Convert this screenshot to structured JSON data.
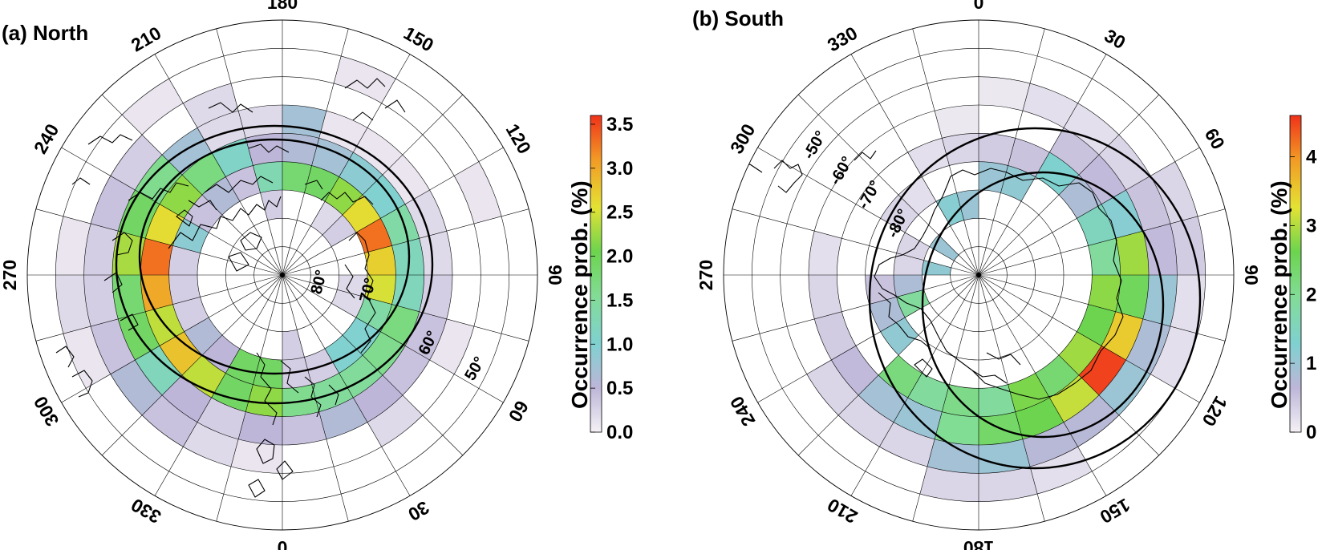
{
  "chart_data": [
    {
      "type": "heatmap",
      "projection": "polar",
      "title": "(a) North",
      "colorbar": {
        "label": "Occurrence prob. (%)",
        "ticks": [
          "0.0",
          "0.5",
          "1.0",
          "1.5",
          "2.0",
          "2.5",
          "3.0",
          "3.5"
        ],
        "range": [
          0,
          3.6
        ]
      },
      "lon_labels": [
        "180",
        "150",
        "120",
        "90",
        "60",
        "30",
        "0",
        "330",
        "300",
        "270",
        "240",
        "210"
      ],
      "lat_labels": [
        "80°",
        "70°",
        "60°",
        "50°"
      ],
      "lat_range": [
        45,
        90
      ],
      "lon_bin_deg": 15,
      "lat_bands": [
        50,
        55,
        60,
        65,
        70,
        75,
        80
      ],
      "grid": true,
      "ovals": [
        {
          "center_lat_offset": 1.5,
          "radius_deg": 23
        },
        {
          "center_lat_offset": 1.5,
          "radius_deg": 30
        }
      ],
      "cells": [
        {
          "lon": 0,
          "lat": 70,
          "v": 0.3
        },
        {
          "lon": 15,
          "lat": 70,
          "v": 0.3
        },
        {
          "lon": 30,
          "lat": 70,
          "v": 1.0
        },
        {
          "lon": 45,
          "lat": 70,
          "v": 1.0
        },
        {
          "lon": 60,
          "lat": 70,
          "v": 1.4
        },
        {
          "lon": 75,
          "lat": 70,
          "v": 2.5
        },
        {
          "lon": 90,
          "lat": 70,
          "v": 2.7
        },
        {
          "lon": 105,
          "lat": 70,
          "v": 3.3
        },
        {
          "lon": 120,
          "lat": 70,
          "v": 2.6
        },
        {
          "lon": 135,
          "lat": 70,
          "v": 2.2
        },
        {
          "lon": 150,
          "lat": 70,
          "v": 1.9
        },
        {
          "lon": 165,
          "lat": 70,
          "v": 1.8
        },
        {
          "lon": 180,
          "lat": 70,
          "v": 1.3
        },
        {
          "lon": 195,
          "lat": 70,
          "v": 0.4
        },
        {
          "lon": 210,
          "lat": 70,
          "v": 0.6
        },
        {
          "lon": 225,
          "lat": 70,
          "v": 0.4
        },
        {
          "lon": 240,
          "lat": 70,
          "v": 0.9
        },
        {
          "lon": 255,
          "lat": 70,
          "v": 0.3
        },
        {
          "lon": 270,
          "lat": 70,
          "v": 0.3
        },
        {
          "lon": 285,
          "lat": 70,
          "v": 0.3
        },
        {
          "lon": 300,
          "lat": 70,
          "v": 0.6
        },
        {
          "lon": 315,
          "lat": 70,
          "v": 0.5
        },
        {
          "lon": 330,
          "lat": 70,
          "v": 1.9
        },
        {
          "lon": 345,
          "lat": 70,
          "v": 1.9
        },
        {
          "lon": 0,
          "lat": 65,
          "v": 1.6
        },
        {
          "lon": 15,
          "lat": 65,
          "v": 1.5
        },
        {
          "lon": 30,
          "lat": 65,
          "v": 1.5
        },
        {
          "lon": 45,
          "lat": 65,
          "v": 1.6
        },
        {
          "lon": 60,
          "lat": 65,
          "v": 1.7
        },
        {
          "lon": 75,
          "lat": 65,
          "v": 1.2
        },
        {
          "lon": 90,
          "lat": 65,
          "v": 1.2
        },
        {
          "lon": 105,
          "lat": 65,
          "v": 1.4
        },
        {
          "lon": 120,
          "lat": 65,
          "v": 1.0
        },
        {
          "lon": 135,
          "lat": 65,
          "v": 0.9
        },
        {
          "lon": 150,
          "lat": 65,
          "v": 0.7
        },
        {
          "lon": 165,
          "lat": 65,
          "v": 0.6
        },
        {
          "lon": 180,
          "lat": 65,
          "v": 0.5
        },
        {
          "lon": 195,
          "lat": 65,
          "v": 1.1
        },
        {
          "lon": 210,
          "lat": 65,
          "v": 1.7
        },
        {
          "lon": 225,
          "lat": 65,
          "v": 2.2
        },
        {
          "lon": 240,
          "lat": 65,
          "v": 2.6
        },
        {
          "lon": 255,
          "lat": 65,
          "v": 3.3
        },
        {
          "lon": 270,
          "lat": 65,
          "v": 3.0
        },
        {
          "lon": 285,
          "lat": 65,
          "v": 2.4
        },
        {
          "lon": 300,
          "lat": 65,
          "v": 2.8
        },
        {
          "lon": 315,
          "lat": 65,
          "v": 2.4
        },
        {
          "lon": 330,
          "lat": 65,
          "v": 1.9
        },
        {
          "lon": 345,
          "lat": 65,
          "v": 2.2
        },
        {
          "lon": 0,
          "lat": 60,
          "v": 0.4
        },
        {
          "lon": 15,
          "lat": 60,
          "v": 0.6
        },
        {
          "lon": 30,
          "lat": 60,
          "v": 0.5
        },
        {
          "lon": 45,
          "lat": 60,
          "v": 0.4
        },
        {
          "lon": 60,
          "lat": 60,
          "v": 0.4
        },
        {
          "lon": 75,
          "lat": 60,
          "v": 0.3
        },
        {
          "lon": 90,
          "lat": 60,
          "v": 0.2
        },
        {
          "lon": 105,
          "lat": 60,
          "v": 0.2
        },
        {
          "lon": 120,
          "lat": 60,
          "v": 0.1
        },
        {
          "lon": 135,
          "lat": 60,
          "v": 0.1
        },
        {
          "lon": 150,
          "lat": 60,
          "v": 0.1
        },
        {
          "lon": 165,
          "lat": 60,
          "v": 0.7
        },
        {
          "lon": 180,
          "lat": 60,
          "v": 0.2
        },
        {
          "lon": 195,
          "lat": 60,
          "v": 0.2
        },
        {
          "lon": 210,
          "lat": 60,
          "v": 0.7
        },
        {
          "lon": 225,
          "lat": 60,
          "v": 1.6
        },
        {
          "lon": 240,
          "lat": 60,
          "v": 1.9
        },
        {
          "lon": 255,
          "lat": 60,
          "v": 2.3
        },
        {
          "lon": 270,
          "lat": 60,
          "v": 1.8
        },
        {
          "lon": 285,
          "lat": 60,
          "v": 1.9
        },
        {
          "lon": 300,
          "lat": 60,
          "v": 1.2
        },
        {
          "lon": 315,
          "lat": 60,
          "v": 0.5
        },
        {
          "lon": 330,
          "lat": 60,
          "v": 0.3
        },
        {
          "lon": 345,
          "lat": 60,
          "v": 0.5
        },
        {
          "lon": 195,
          "lat": 55,
          "v": 0.2
        },
        {
          "lon": 225,
          "lat": 55,
          "v": 0.3
        },
        {
          "lon": 240,
          "lat": 55,
          "v": 0.4
        },
        {
          "lon": 255,
          "lat": 55,
          "v": 0.3
        },
        {
          "lon": 270,
          "lat": 55,
          "v": 0.3
        },
        {
          "lon": 285,
          "lat": 55,
          "v": 0.4
        },
        {
          "lon": 300,
          "lat": 55,
          "v": 0.6
        },
        {
          "lon": 315,
          "lat": 55,
          "v": 0.4
        },
        {
          "lon": 330,
          "lat": 55,
          "v": 0.2
        },
        {
          "lon": 345,
          "lat": 55,
          "v": 0.1
        },
        {
          "lon": 30,
          "lat": 55,
          "v": 0.2
        },
        {
          "lon": 60,
          "lat": 55,
          "v": 0.1
        },
        {
          "lon": 270,
          "lat": 50,
          "v": 0.2
        },
        {
          "lon": 255,
          "lat": 50,
          "v": 0.1
        },
        {
          "lon": 285,
          "lat": 50,
          "v": 0.1
        },
        {
          "lon": 210,
          "lat": 50,
          "v": 0.1
        },
        {
          "lon": 150,
          "lat": 50,
          "v": 0.1
        },
        {
          "lon": 105,
          "lat": 50,
          "v": 0.1
        },
        {
          "lon": 180,
          "lat": 75,
          "v": 0.3
        },
        {
          "lon": 120,
          "lat": 75,
          "v": 0.3
        },
        {
          "lon": 60,
          "lat": 75,
          "v": 0.2
        },
        {
          "lon": 0,
          "lat": 75,
          "v": 0.3
        },
        {
          "lon": 75,
          "lat": 75,
          "v": 0.2
        },
        {
          "lon": 135,
          "lat": 75,
          "v": 0.2
        }
      ]
    },
    {
      "type": "heatmap",
      "projection": "polar",
      "title": "(b) South",
      "colorbar": {
        "label": "Occurrence prob. (%)",
        "ticks": [
          "0",
          "1",
          "2",
          "3",
          "4"
        ],
        "range": [
          0,
          4.6
        ]
      },
      "lon_labels": [
        "0",
        "30",
        "60",
        "90",
        "120",
        "150",
        "180",
        "210",
        "240",
        "270",
        "300",
        "330"
      ],
      "lat_labels": [
        "-50°",
        "-60°",
        "-70°",
        "-80°"
      ],
      "lat_range": [
        -45,
        -90
      ],
      "lon_bin_deg": 15,
      "lat_bands": [
        50,
        55,
        60,
        65,
        70,
        75,
        80
      ],
      "grid": true,
      "ovals": [
        {
          "center_lon": 120,
          "center_offset_deg": 9,
          "radius_deg": 18
        },
        {
          "center_lon": 120,
          "center_offset_deg": 6,
          "radius_deg": 26
        }
      ],
      "cells": [
        {
          "lon": 0,
          "lat": -70,
          "v": 1.0
        },
        {
          "lon": 15,
          "lat": -70,
          "v": 1.1
        },
        {
          "lon": 30,
          "lat": -65,
          "v": 1.3
        },
        {
          "lon": 45,
          "lat": -65,
          "v": 0.8
        },
        {
          "lon": 60,
          "lat": -60,
          "v": 1.2
        },
        {
          "lon": 75,
          "lat": -60,
          "v": 2.9
        },
        {
          "lon": 90,
          "lat": -60,
          "v": 2.5
        },
        {
          "lon": 105,
          "lat": -60,
          "v": 3.5
        },
        {
          "lon": 120,
          "lat": -60,
          "v": 4.5
        },
        {
          "lon": 135,
          "lat": -60,
          "v": 3.1
        },
        {
          "lon": 150,
          "lat": -60,
          "v": 2.6
        },
        {
          "lon": 165,
          "lat": -60,
          "v": 2.4
        },
        {
          "lon": 180,
          "lat": -60,
          "v": 2.0
        },
        {
          "lon": 195,
          "lat": -65,
          "v": 1.9
        },
        {
          "lon": 210,
          "lat": -65,
          "v": 2.2
        },
        {
          "lon": 225,
          "lat": -70,
          "v": 1.1
        },
        {
          "lon": 240,
          "lat": -75,
          "v": 1.9
        },
        {
          "lon": 255,
          "lat": -75,
          "v": 0.8
        },
        {
          "lon": 270,
          "lat": -80,
          "v": 1.1
        },
        {
          "lon": 300,
          "lat": -80,
          "v": 1.0
        },
        {
          "lon": 330,
          "lat": -75,
          "v": 1.2
        },
        {
          "lon": 345,
          "lat": -75,
          "v": 1.0
        },
        {
          "lon": 60,
          "lat": -65,
          "v": 1.5
        },
        {
          "lon": 75,
          "lat": -65,
          "v": 1.9
        },
        {
          "lon": 90,
          "lat": -65,
          "v": 2.8
        },
        {
          "lon": 105,
          "lat": -65,
          "v": 2.6
        },
        {
          "lon": 120,
          "lat": -65,
          "v": 2.9
        },
        {
          "lon": 135,
          "lat": -65,
          "v": 2.3
        },
        {
          "lon": 150,
          "lat": -65,
          "v": 2.7
        },
        {
          "lon": 165,
          "lat": -65,
          "v": 1.9
        },
        {
          "lon": 180,
          "lat": -65,
          "v": 2.1
        },
        {
          "lon": 180,
          "lat": -55,
          "v": 0.9
        },
        {
          "lon": 165,
          "lat": -55,
          "v": 1.0
        },
        {
          "lon": 150,
          "lat": -55,
          "v": 0.7
        },
        {
          "lon": 135,
          "lat": -55,
          "v": 0.7
        },
        {
          "lon": 120,
          "lat": -55,
          "v": 1.0
        },
        {
          "lon": 105,
          "lat": -55,
          "v": 0.8
        },
        {
          "lon": 90,
          "lat": -55,
          "v": 1.0
        },
        {
          "lon": 75,
          "lat": -55,
          "v": 0.6
        },
        {
          "lon": 60,
          "lat": -55,
          "v": 0.5
        },
        {
          "lon": 45,
          "lat": -60,
          "v": 0.6
        },
        {
          "lon": 30,
          "lat": -60,
          "v": 0.5
        },
        {
          "lon": 15,
          "lat": -65,
          "v": 0.5
        },
        {
          "lon": 0,
          "lat": -65,
          "v": 0.4
        },
        {
          "lon": 345,
          "lat": -65,
          "v": 0.3
        },
        {
          "lon": 330,
          "lat": -65,
          "v": 0.2
        },
        {
          "lon": 195,
          "lat": -60,
          "v": 1.0
        },
        {
          "lon": 210,
          "lat": -60,
          "v": 0.9
        },
        {
          "lon": 225,
          "lat": -60,
          "v": 0.6
        },
        {
          "lon": 240,
          "lat": -60,
          "v": 0.4
        },
        {
          "lon": 255,
          "lat": -60,
          "v": 0.3
        },
        {
          "lon": 270,
          "lat": -60,
          "v": 0.2
        },
        {
          "lon": 195,
          "lat": -55,
          "v": 0.3
        },
        {
          "lon": 210,
          "lat": -55,
          "v": 0.3
        },
        {
          "lon": 225,
          "lat": -55,
          "v": 0.3
        },
        {
          "lon": 60,
          "lat": -50,
          "v": 0.3
        },
        {
          "lon": 75,
          "lat": -50,
          "v": 0.4
        },
        {
          "lon": 90,
          "lat": -50,
          "v": 0.2
        },
        {
          "lon": 105,
          "lat": -50,
          "v": 0.2
        },
        {
          "lon": 150,
          "lat": -50,
          "v": 0.2
        },
        {
          "lon": 165,
          "lat": -50,
          "v": 0.3
        },
        {
          "lon": 180,
          "lat": -50,
          "v": 0.3
        },
        {
          "lon": 45,
          "lat": -55,
          "v": 0.3
        },
        {
          "lon": 30,
          "lat": -55,
          "v": 0.2
        },
        {
          "lon": 15,
          "lat": -55,
          "v": 0.2
        },
        {
          "lon": 0,
          "lat": -55,
          "v": 0.1
        },
        {
          "lon": 345,
          "lat": -60,
          "v": 0.1
        },
        {
          "lon": 240,
          "lat": -70,
          "v": 0.8
        },
        {
          "lon": 255,
          "lat": -70,
          "v": 0.5
        },
        {
          "lon": 270,
          "lat": -75,
          "v": 0.3
        },
        {
          "lon": 285,
          "lat": -75,
          "v": 0.3
        },
        {
          "lon": 300,
          "lat": -70,
          "v": 0.3
        },
        {
          "lon": 315,
          "lat": -70,
          "v": 0.2
        }
      ]
    }
  ]
}
